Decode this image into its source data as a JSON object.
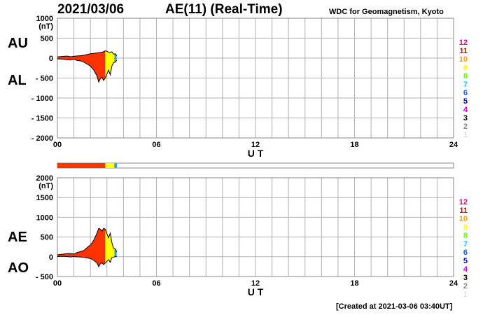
{
  "header": {
    "date": "2021/03/06",
    "title": "AE(11) (Real-Time)",
    "source": "WDC for Geomagnetism, Kyoto"
  },
  "footer": {
    "created": "[Created at 2021-03-06 03:40UT]"
  },
  "side_labels": {
    "au": "AU",
    "al": "AL",
    "ae": "AE",
    "ao": "AO"
  },
  "station_count_legend": [
    "12",
    "11",
    "10",
    "9",
    "8",
    "7",
    "6",
    "5",
    "4",
    "3",
    "2",
    "1"
  ],
  "colors": {
    "count_colors": [
      "#e8006e",
      "#e80000",
      "#ff9900",
      "#ffff00",
      "#66ff00",
      "#00ccff",
      "#0066ff",
      "#0000cc",
      "#cc00cc",
      "#000000",
      "#888888",
      "#dddddd"
    ],
    "grid": "#b0b0b0",
    "main_fill": "#ff3300",
    "recent_fill": "#ffff00",
    "edge_fill": "#3399ff"
  },
  "chart_data": [
    {
      "name": "AU/AL",
      "type": "area",
      "xlabel": "U T",
      "ylabel_unit": "(nT)",
      "xlim": [
        0,
        24
      ],
      "ylim": [
        -2000,
        1000
      ],
      "y_ticks": [
        1000,
        500,
        0,
        -500,
        -1000,
        -1500,
        -2000
      ],
      "y_tick_labels": [
        "1000",
        "500",
        "0",
        "- 500",
        "- 1000",
        "- 1500",
        "- 2000"
      ],
      "x_ticks": [
        0,
        6,
        12,
        18,
        24
      ],
      "x_tick_labels": [
        "00",
        "06",
        "12",
        "18",
        "24"
      ],
      "grid": true,
      "series": [
        {
          "name": "AU",
          "x": [
            0,
            0.2,
            0.4,
            0.6,
            0.8,
            1.0,
            1.2,
            1.4,
            1.6,
            1.8,
            2.0,
            2.2,
            2.4,
            2.6,
            2.8,
            2.9,
            3.0,
            3.1,
            3.2,
            3.3,
            3.4,
            3.5,
            3.6
          ],
          "values": [
            30,
            40,
            45,
            50,
            35,
            45,
            55,
            60,
            70,
            90,
            110,
            120,
            130,
            140,
            160,
            180,
            170,
            150,
            140,
            160,
            100,
            110,
            60
          ]
        },
        {
          "name": "AL",
          "x": [
            0,
            0.2,
            0.4,
            0.6,
            0.8,
            1.0,
            1.2,
            1.4,
            1.6,
            1.8,
            2.0,
            2.2,
            2.4,
            2.5,
            2.6,
            2.7,
            2.8,
            2.9,
            3.0,
            3.1,
            3.2,
            3.3,
            3.4,
            3.5,
            3.6
          ],
          "values": [
            -20,
            -25,
            -30,
            -40,
            -50,
            -30,
            -60,
            -70,
            -100,
            -150,
            -200,
            -300,
            -450,
            -600,
            -520,
            -480,
            -560,
            -500,
            -400,
            -300,
            -420,
            -200,
            -120,
            -100,
            -60
          ]
        }
      ]
    },
    {
      "name": "AE/AO",
      "type": "area",
      "xlabel": "U T",
      "ylabel_unit": "(nT)",
      "xlim": [
        0,
        24
      ],
      "ylim": [
        -500,
        2000
      ],
      "y_ticks": [
        2000,
        1500,
        1000,
        500,
        0,
        -500
      ],
      "y_tick_labels": [
        "2000",
        "1500",
        "1000",
        "500",
        "0",
        "- 500"
      ],
      "x_ticks": [
        0,
        6,
        12,
        18,
        24
      ],
      "x_tick_labels": [
        "00",
        "06",
        "12",
        "18",
        "24"
      ],
      "grid": true,
      "series": [
        {
          "name": "AE",
          "x": [
            0,
            0.2,
            0.4,
            0.6,
            0.8,
            1.0,
            1.2,
            1.4,
            1.6,
            1.8,
            2.0,
            2.2,
            2.4,
            2.5,
            2.6,
            2.7,
            2.8,
            2.9,
            3.0,
            3.1,
            3.2,
            3.3,
            3.4,
            3.5,
            3.6
          ],
          "values": [
            50,
            60,
            70,
            80,
            80,
            70,
            110,
            130,
            160,
            230,
            300,
            420,
            600,
            720,
            700,
            650,
            720,
            700,
            580,
            480,
            600,
            360,
            220,
            200,
            120
          ]
        },
        {
          "name": "AO",
          "x": [
            0,
            0.2,
            0.4,
            0.6,
            0.8,
            1.0,
            1.2,
            1.4,
            1.6,
            1.8,
            2.0,
            2.2,
            2.4,
            2.5,
            2.6,
            2.7,
            2.8,
            2.9,
            3.0,
            3.1,
            3.2,
            3.3,
            3.4,
            3.5,
            3.6
          ],
          "values": [
            5,
            8,
            8,
            5,
            -5,
            5,
            -3,
            -5,
            -15,
            -30,
            -45,
            -90,
            -160,
            -250,
            -180,
            -150,
            -200,
            -160,
            -115,
            -75,
            -140,
            -20,
            -10,
            5,
            0
          ]
        }
      ]
    }
  ]
}
